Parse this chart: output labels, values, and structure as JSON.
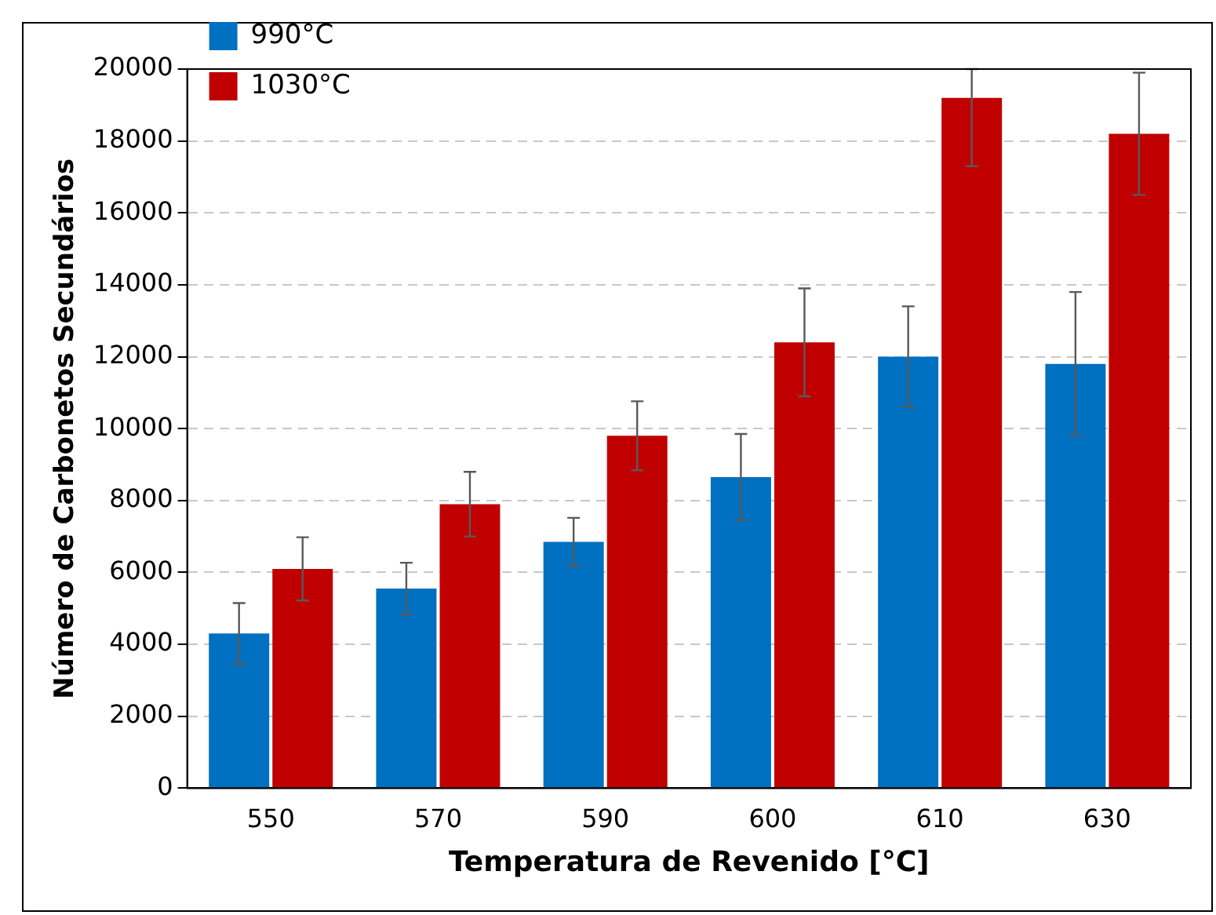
{
  "chart_data": {
    "type": "bar",
    "xlabel": "Temperatura de Revenido [°C]",
    "ylabel": "Número de Carbonetos Secundários",
    "categories": [
      "550",
      "570",
      "590",
      "600",
      "610",
      "630"
    ],
    "series": [
      {
        "name": "990°C",
        "color": "#0070c0",
        "values": [
          4300,
          5550,
          6850,
          8650,
          12000,
          11800
        ],
        "errors": [
          850,
          720,
          670,
          1200,
          1400,
          2000
        ]
      },
      {
        "name": "1030°C",
        "color": "#c00000",
        "values": [
          6100,
          7900,
          9800,
          12400,
          19200,
          18200
        ],
        "errors": [
          880,
          900,
          960,
          1500,
          [
            17300,
            20000
          ],
          1700
        ]
      }
    ],
    "ylim": [
      0,
      20000
    ],
    "yticks": [
      0,
      2000,
      4000,
      6000,
      8000,
      10000,
      12000,
      14000,
      16000,
      18000,
      20000
    ],
    "grid": "y",
    "legend": "top left"
  }
}
